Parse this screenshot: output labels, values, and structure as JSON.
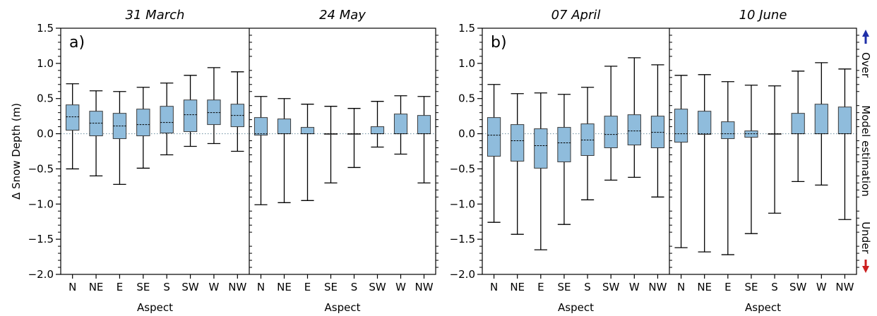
{
  "colors": {
    "box_fill": "#8fbcdc",
    "box_edge": "#3b3b3b",
    "zero_line": "#7a9aa8",
    "up_arrow": "#1f2fa8",
    "down_arrow": "#cc1f1f"
  },
  "side_labels": {
    "over": "Over",
    "model_estimation": "Model estimation",
    "under": "Under"
  },
  "chart_data": [
    {
      "type": "box",
      "panel_label": "a)",
      "ylabel": "Δ Snow Depth (m)",
      "ylim": [
        -2.0,
        1.5
      ],
      "yticks": [
        "1.5",
        "1.0",
        "0.5",
        "0.0",
        "−0.5",
        "−1.0",
        "−1.5",
        "−2.0"
      ],
      "xlabel": "Aspect",
      "subplots": [
        {
          "title": "31 March",
          "categories": [
            "N",
            "NE",
            "E",
            "SE",
            "S",
            "SW",
            "W",
            "NW"
          ],
          "whisker_low": [
            -0.5,
            -0.6,
            -0.72,
            -0.49,
            -0.3,
            -0.18,
            -0.14,
            -0.25
          ],
          "q1": [
            0.05,
            -0.03,
            -0.07,
            -0.03,
            0.01,
            0.03,
            0.13,
            0.1
          ],
          "median": [
            0.24,
            0.15,
            0.11,
            0.13,
            0.16,
            0.27,
            0.3,
            0.26
          ],
          "q3": [
            0.41,
            0.32,
            0.29,
            0.35,
            0.39,
            0.48,
            0.48,
            0.42
          ],
          "whisker_high": [
            0.71,
            0.61,
            0.6,
            0.66,
            0.72,
            0.83,
            0.94,
            0.88
          ]
        },
        {
          "title": "24 May",
          "categories": [
            "N",
            "NE",
            "E",
            "SE",
            "S",
            "SW",
            "W",
            "NW"
          ],
          "whisker_low": [
            -1.01,
            -0.98,
            -0.95,
            -0.7,
            -0.48,
            -0.19,
            -0.29,
            -0.7
          ],
          "q1": [
            -0.02,
            0.0,
            0.0,
            0.0,
            0.0,
            0.0,
            0.0,
            0.0
          ],
          "median": [
            0.0,
            0.0,
            0.0,
            0.0,
            0.0,
            0.0,
            0.0,
            0.0
          ],
          "q3": [
            0.23,
            0.21,
            0.09,
            0.0,
            0.0,
            0.1,
            0.28,
            0.26
          ],
          "whisker_high": [
            0.53,
            0.5,
            0.42,
            0.39,
            0.36,
            0.46,
            0.54,
            0.53
          ]
        }
      ]
    },
    {
      "type": "box",
      "panel_label": "b)",
      "ylim": [
        -2.0,
        1.5
      ],
      "yticks": [
        "1.5",
        "1.0",
        "0.5",
        "0.0",
        "−0.5",
        "−1.0",
        "−1.5",
        "−2.0"
      ],
      "xlabel": "Aspect",
      "subplots": [
        {
          "title": "07 April",
          "categories": [
            "N",
            "NE",
            "E",
            "SE",
            "S",
            "SW",
            "W",
            "NW"
          ],
          "whisker_low": [
            -1.26,
            -1.43,
            -1.65,
            -1.29,
            -0.94,
            -0.66,
            -0.62,
            -0.9
          ],
          "q1": [
            -0.32,
            -0.39,
            -0.49,
            -0.4,
            -0.31,
            -0.2,
            -0.16,
            -0.2
          ],
          "median": [
            -0.02,
            -0.1,
            -0.17,
            -0.13,
            -0.09,
            -0.01,
            0.04,
            0.02
          ],
          "q3": [
            0.23,
            0.13,
            0.07,
            0.09,
            0.14,
            0.25,
            0.27,
            0.25
          ],
          "whisker_high": [
            0.7,
            0.57,
            0.58,
            0.56,
            0.66,
            0.96,
            1.08,
            0.98
          ]
        },
        {
          "title": "10 June",
          "categories": [
            "N",
            "NE",
            "E",
            "SE",
            "S",
            "SW",
            "W",
            "NW"
          ],
          "whisker_low": [
            -1.62,
            -1.68,
            -1.72,
            -1.42,
            -1.13,
            -0.68,
            -0.73,
            -1.22
          ],
          "q1": [
            -0.12,
            -0.01,
            -0.07,
            -0.05,
            0.0,
            0.0,
            0.0,
            0.0
          ],
          "median": [
            0.0,
            0.0,
            0.0,
            0.0,
            0.0,
            0.0,
            0.0,
            0.0
          ],
          "q3": [
            0.35,
            0.32,
            0.17,
            0.04,
            0.0,
            0.29,
            0.42,
            0.38
          ],
          "whisker_high": [
            0.83,
            0.84,
            0.74,
            0.69,
            0.68,
            0.89,
            1.01,
            0.92
          ]
        }
      ]
    }
  ]
}
